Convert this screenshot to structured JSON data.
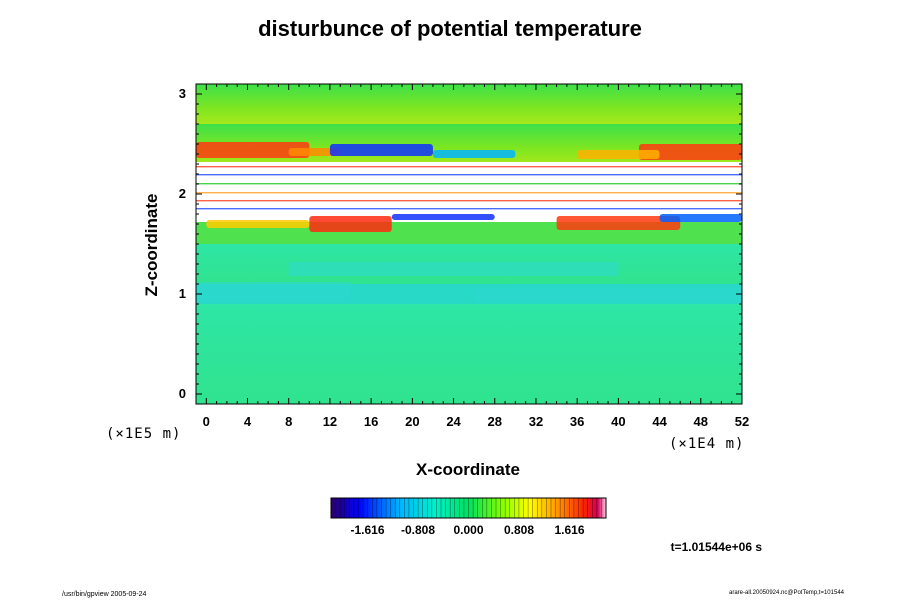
{
  "title": "disturbunce of potential temperature",
  "chart_data": {
    "type": "heatmap",
    "title": "disturbunce of potential temperature",
    "xlabel": "X-coordinate",
    "ylabel": "Z-coordinate",
    "x_unit": "(×1E4 m)",
    "y_unit": "(×1E5 m)",
    "xlim": [
      -1,
      52
    ],
    "ylim": [
      -0.1,
      3.1
    ],
    "x_ticks": [
      "0",
      "4",
      "8",
      "12",
      "16",
      "20",
      "24",
      "28",
      "32",
      "36",
      "40",
      "44",
      "48",
      "52"
    ],
    "y_ticks": [
      "0",
      "1",
      "2",
      "3"
    ],
    "x_tick_values": [
      0,
      4,
      8,
      12,
      16,
      20,
      24,
      28,
      32,
      36,
      40,
      44,
      48,
      52
    ],
    "y_tick_values": [
      0,
      1,
      2,
      3
    ],
    "colorbar": {
      "tick_labels": [
        "-1.616",
        "-0.808",
        "0.000",
        "0.808",
        "1.616"
      ],
      "tick_values": [
        -1.616,
        -0.808,
        0.0,
        0.808,
        1.616
      ],
      "range": [
        -2.2,
        2.2
      ],
      "colormap": "rainbow"
    },
    "time_label": "t=1.01544e+06 s",
    "bands": [
      {
        "z_from": -0.1,
        "z_to": 0.9,
        "value": 0.05,
        "color": "#2ee89a"
      },
      {
        "z_from": 0.9,
        "z_to": 1.1,
        "value": -0.35,
        "color": "#27d9c6"
      },
      {
        "z_from": 1.1,
        "z_to": 1.5,
        "value": 0.1,
        "color": "#35e585"
      },
      {
        "z_from": 1.5,
        "z_to": 1.72,
        "value": 0.35,
        "color": "#4fe24e"
      },
      {
        "z_from": 1.72,
        "z_to": 2.3,
        "value": 2.4,
        "color": "#ffffff"
      },
      {
        "z_from": 2.3,
        "z_to": 2.7,
        "value": 0.55,
        "color": "#8fe81c"
      },
      {
        "z_from": 2.7,
        "z_to": 3.1,
        "value": 0.45,
        "color": "#58e32a"
      }
    ]
  },
  "footer": {
    "left": "/usr/bin/gpview 2005-09-24",
    "right": "arare-all.20050924.nc@PotTemp,t=101544"
  }
}
